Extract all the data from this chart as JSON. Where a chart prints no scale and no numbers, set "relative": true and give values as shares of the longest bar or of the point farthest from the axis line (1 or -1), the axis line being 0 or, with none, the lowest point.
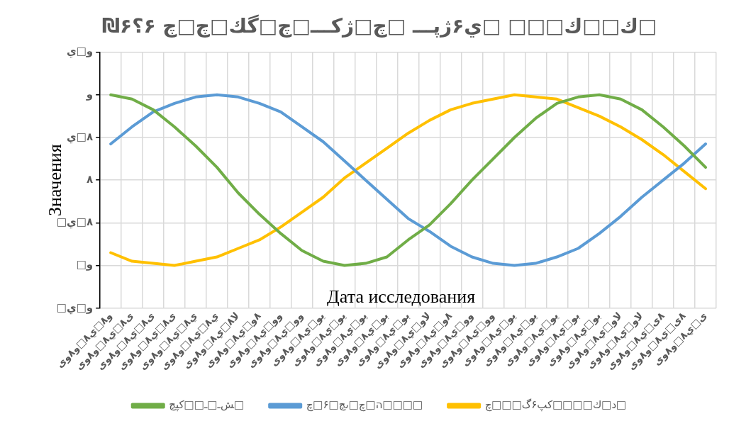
{
  "chart_data": {
    "type": "line",
    "title": "₪۶ك□□ك□□□ □ي۶ژپـــ □چ□ژكـــ□چ□گك□چ□چ ۶؟□",
    "xlabel": "Дата исследования",
    "ylabel": "Значения",
    "categories": [
      "و٨□ي٨□و٨وی",
      "ی٨□ي٨□و٨وی",
      "ی٨□ي٨□و٨وی",
      "ی٨□ي٨□و٨وی",
      "ي٨□ي٨□و٨وی",
      "ي٨□ي٨□و٨وی",
      "لا٨□ي٨□و٨وی",
      "٨و□ي٨□و٨وی",
      "وو□ي٨□و٨وی",
      "وو□ي٨□و٨وی",
      "یو□ي٨□و٨وی",
      "یو□ي٨□و٨وی",
      "يو□ي٨□و٨وی",
      "بو□ي٨□و٨وی",
      "بو□ي٨□و٨وی",
      "لاو□ي٨□و٨وی",
      "٨و□ي٨□و٨وی",
      "وو□ي٨□و٨وی",
      "وو□ي٨□و٨وی",
      "یو□ي٨□و٨وی",
      "يو□ي٨□و٨وی",
      "يو□ي٨□و٨وی",
      "بو□ي٨□و٨وی",
      "بو□ي٨□و٨وی",
      "لاو□ي٨□و٨وی",
      "لاو□ي٨□و٨وی",
      "٨ی□ي٨□و٨وی",
      "٨ی□ي٨□و٨وی",
      "ی□ي٨□و٨وی"
    ],
    "series": [
      {
        "name": "ﺶـ□ـ□□كپچ□",
        "color": "#70ad47",
        "values": [
          1.0,
          0.98,
          0.93,
          0.85,
          0.76,
          0.66,
          0.54,
          0.44,
          0.35,
          0.27,
          0.22,
          0.2,
          0.21,
          0.24,
          0.32,
          0.39,
          0.49,
          0.6,
          0.7,
          0.8,
          0.89,
          0.96,
          0.99,
          1.0,
          0.98,
          0.93,
          0.85,
          0.76,
          0.66
        ]
      },
      {
        "name": "ה□چ□ىچ□۶□چ□□□□",
        "color": "#5b9bd5",
        "values": [
          0.77,
          0.85,
          0.92,
          0.96,
          0.99,
          1.0,
          0.99,
          0.96,
          0.92,
          0.85,
          0.78,
          0.69,
          0.6,
          0.51,
          0.42,
          0.36,
          0.29,
          0.24,
          0.21,
          0.2,
          0.21,
          0.24,
          0.28,
          0.35,
          0.43,
          0.52,
          0.6,
          0.68,
          0.77
        ]
      },
      {
        "name": "د□ك□□□□كپ۶گ□□□چ□",
        "color": "#ffc000",
        "values": [
          0.26,
          0.22,
          0.21,
          0.2,
          0.22,
          0.24,
          0.28,
          0.32,
          0.38,
          0.45,
          0.52,
          0.61,
          0.68,
          0.75,
          0.82,
          0.88,
          0.93,
          0.96,
          0.98,
          1.0,
          0.99,
          0.98,
          0.94,
          0.9,
          0.85,
          0.79,
          0.72,
          0.64,
          0.56
        ]
      }
    ],
    "relative": true,
    "annotations": [
      "□و□ي",
      "□و",
      "□٨□ي",
      "٨",
      "٨□ي",
      "و",
      "و□ي"
    ],
    "grid": true,
    "legend": "bottom",
    "marker": "none"
  }
}
